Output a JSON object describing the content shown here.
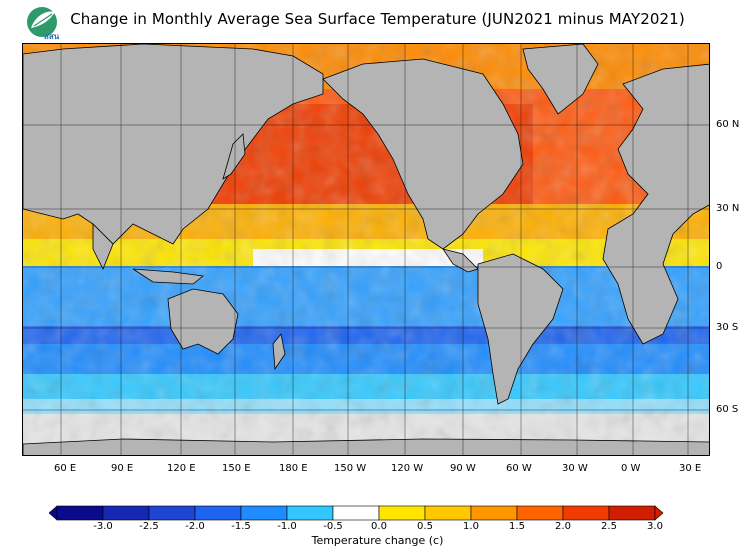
{
  "header": {
    "title": "Change in Monthly Average Sea Surface Temperature (JUN2021 minus MAY2021)",
    "logo_text": "สสน"
  },
  "map": {
    "lat_labels": [
      "60 N",
      "30 N",
      "0",
      "30 S",
      "60 S"
    ],
    "lon_labels": [
      "60 E",
      "90 E",
      "120 E",
      "150 E",
      "180 E",
      "150 W",
      "120 W",
      "90 W",
      "60 W",
      "30 W",
      "0 W",
      "30 E"
    ],
    "land_color": "#b4b4b4",
    "sea_ice_color": "#e6e6e6"
  },
  "colorbar": {
    "ticks": [
      "-3.0",
      "-2.5",
      "-2.0",
      "-1.5",
      "-1.0",
      "-0.5",
      "0.0",
      "0.5",
      "1.0",
      "1.5",
      "2.0",
      "2.5",
      "3.0"
    ],
    "colors": [
      "#0a0a8c",
      "#1428b4",
      "#1e46d2",
      "#1e64f0",
      "#1e8cff",
      "#32c8ff",
      "#ffffff",
      "#ffe600",
      "#ffc800",
      "#ff9600",
      "#ff6400",
      "#f03c00",
      "#d21e00"
    ],
    "title": "Temperature change  (c)"
  }
}
